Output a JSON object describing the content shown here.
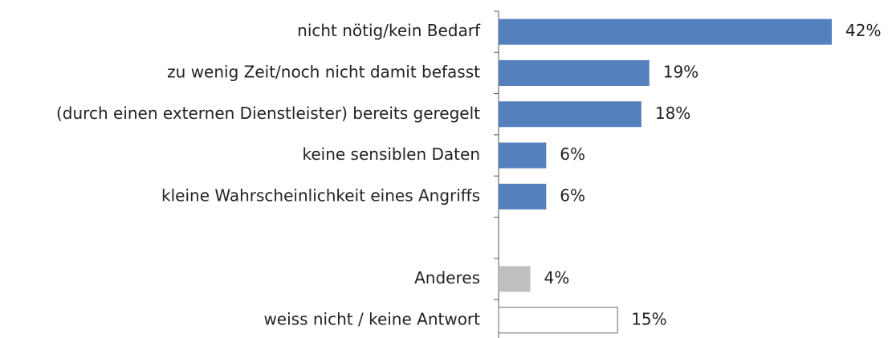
{
  "chart_data": {
    "type": "hbar",
    "categories": [
      "nicht nötig/kein Bedarf",
      "zu wenig Zeit/noch nicht damit befasst",
      "(durch einen externen Dienstleister) bereits geregelt",
      "keine sensiblen Daten",
      "kleine Wahrscheinlichkeit eines Angriffs",
      null,
      "Anderes",
      "weiss nicht / keine Antwort"
    ],
    "values": [
      42,
      19,
      18,
      6,
      6,
      null,
      4,
      15
    ],
    "value_labels": [
      "42%",
      "19%",
      "18%",
      "6%",
      "6%",
      null,
      "4%",
      "15%"
    ],
    "colors": [
      "#5580be",
      "#5580be",
      "#5580be",
      "#5580be",
      "#5580be",
      null,
      "#bfbfbf",
      "#ffffff"
    ]
  }
}
